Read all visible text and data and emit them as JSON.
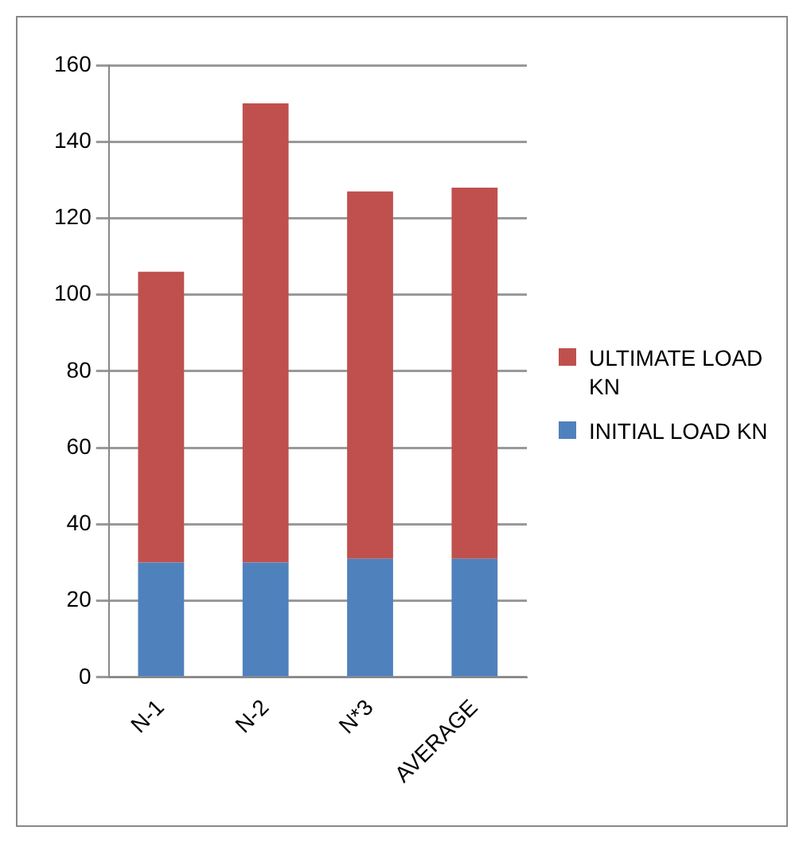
{
  "chart_data": {
    "type": "bar",
    "stacked": true,
    "categories": [
      "N-1",
      "N-2",
      "N*3",
      "AVERAGE"
    ],
    "series": [
      {
        "name": "INITIAL LOAD KN",
        "color": "#4f81bd",
        "values": [
          30,
          30,
          31,
          31
        ]
      },
      {
        "name": "ULTIMATE LOAD KN",
        "color": "#c0504d",
        "values": [
          76,
          120,
          96,
          97
        ]
      }
    ],
    "ylim": [
      0,
      160
    ],
    "yticks": [
      0,
      20,
      40,
      60,
      80,
      100,
      120,
      140,
      160
    ],
    "grid": "y",
    "legend": "right"
  }
}
